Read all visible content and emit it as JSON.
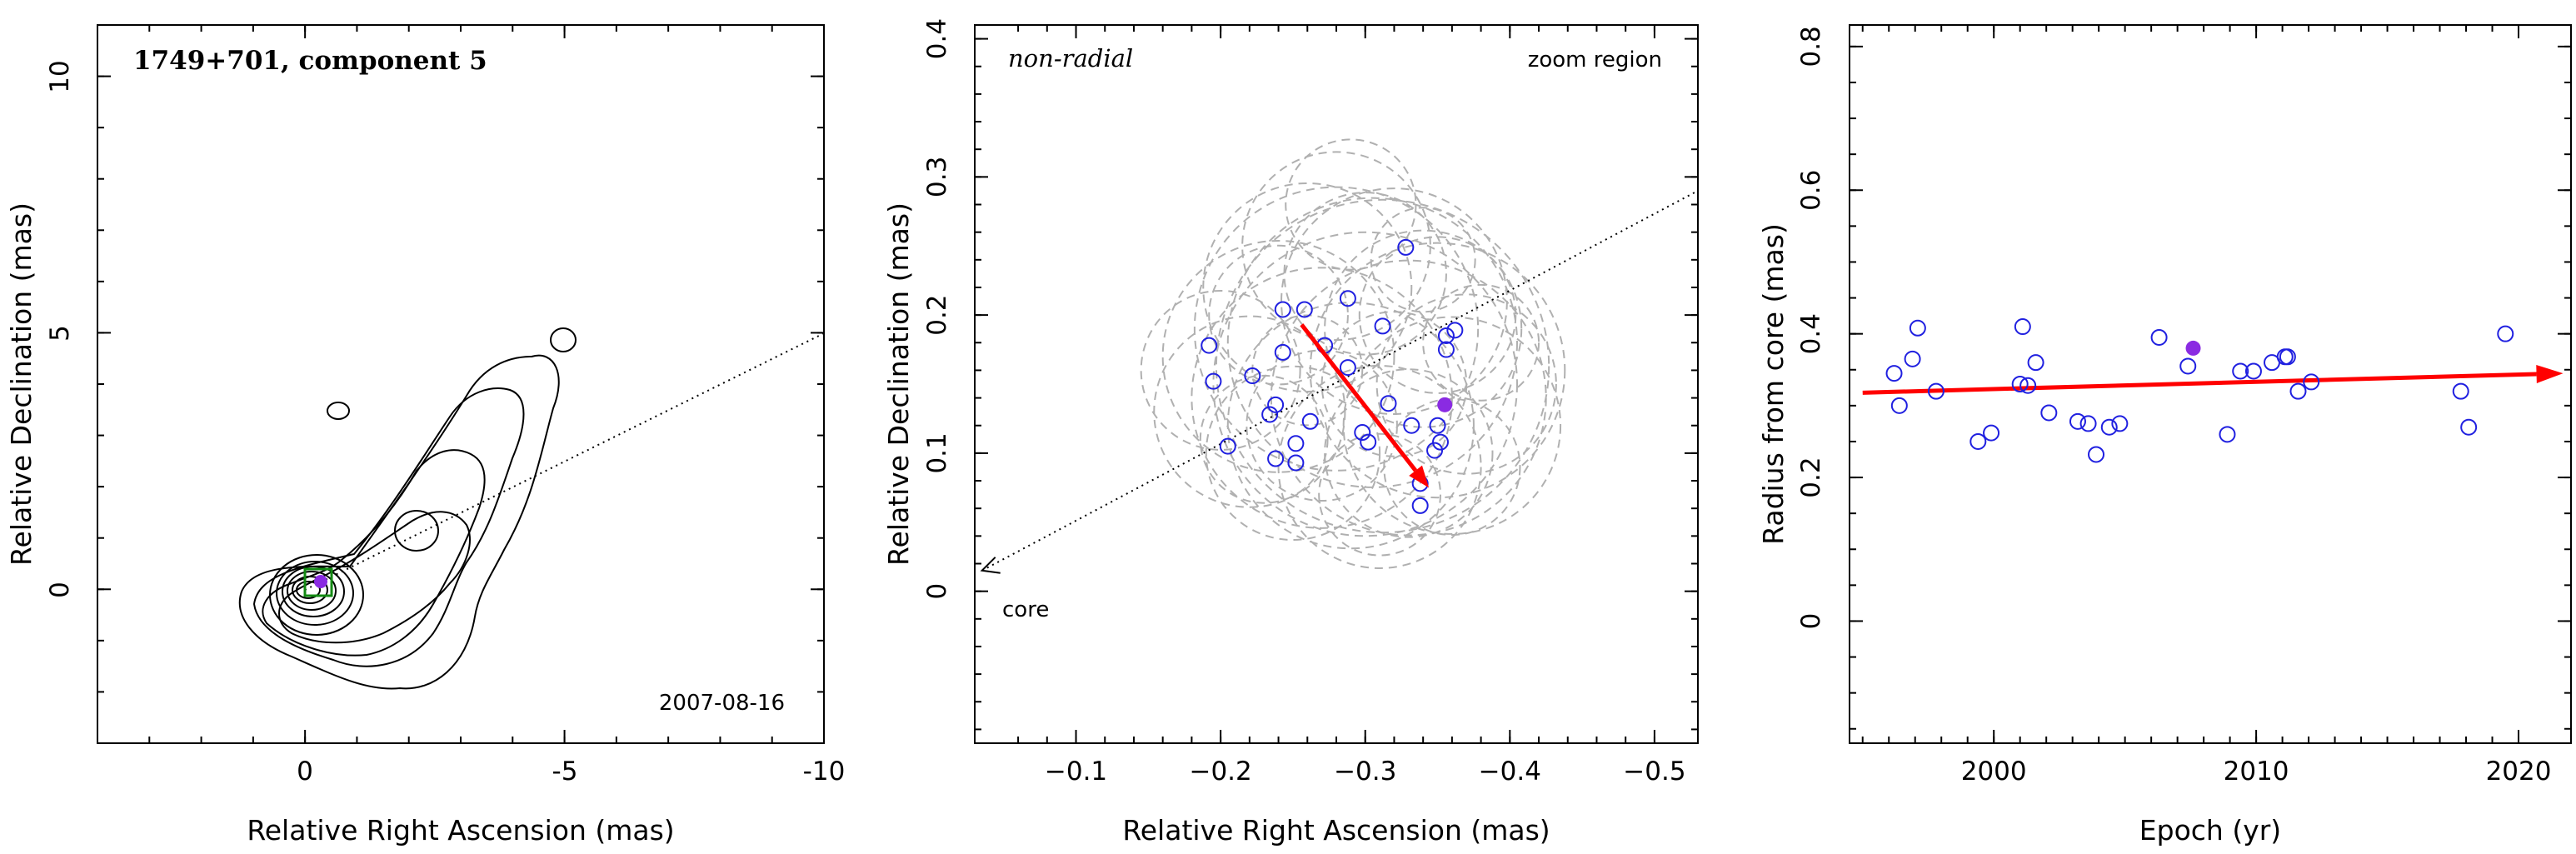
{
  "chart_data": [
    {
      "type": "contour",
      "title": "1749+701, component 5",
      "date": "2007-08-16",
      "xlabel": "Relative Right Ascension (mas)",
      "ylabel": "Relative Declination (mas)",
      "xlim": [
        4,
        -10
      ],
      "ylim": [
        -3,
        11
      ],
      "xticks": [
        0,
        -5,
        -10
      ],
      "yticks": [
        0,
        5,
        10
      ],
      "core_box_color": "#138a13",
      "marker_color": "#8a2be2",
      "component_position": [
        -0.3,
        0.15
      ],
      "direction_line": [
        [
          0,
          0
        ],
        [
          -10,
          5
        ]
      ]
    },
    {
      "type": "scatter",
      "note_left": "non-radial",
      "note_right": "zoom region",
      "core_label": "core",
      "xlabel": "Relative Right Ascension (mas)",
      "ylabel": "Relative Declination (mas)",
      "xlim": [
        -0.03,
        -0.53
      ],
      "ylim": [
        -0.11,
        0.41
      ],
      "xticks": [
        -0.1,
        -0.2,
        -0.3,
        -0.4,
        -0.5
      ],
      "yticks": [
        0,
        0.1,
        0.2,
        0.3,
        0.4
      ],
      "open_marker_color": "#2020e0",
      "filled_marker_color": "#8a2be2",
      "arrow_color": "#ff0000",
      "circle_color": "#b0b0b0",
      "positions": [
        [
          -0.192,
          0.178
        ],
        [
          -0.195,
          0.152
        ],
        [
          -0.205,
          0.105
        ],
        [
          -0.222,
          0.156
        ],
        [
          -0.234,
          0.128
        ],
        [
          -0.238,
          0.135
        ],
        [
          -0.243,
          0.204
        ],
        [
          -0.243,
          0.173
        ],
        [
          -0.258,
          0.204
        ],
        [
          -0.262,
          0.123
        ],
        [
          -0.238,
          0.096
        ],
        [
          -0.252,
          0.093
        ],
        [
          -0.252,
          0.107
        ],
        [
          -0.272,
          0.178
        ],
        [
          -0.288,
          0.212
        ],
        [
          -0.288,
          0.162
        ],
        [
          -0.298,
          0.115
        ],
        [
          -0.302,
          0.108
        ],
        [
          -0.312,
          0.192
        ],
        [
          -0.316,
          0.136
        ],
        [
          -0.328,
          0.249
        ],
        [
          -0.332,
          0.12
        ],
        [
          -0.338,
          0.078
        ],
        [
          -0.338,
          0.062
        ],
        [
          -0.348,
          0.102
        ],
        [
          -0.35,
          0.12
        ],
        [
          -0.352,
          0.108
        ],
        [
          -0.356,
          0.185
        ],
        [
          -0.356,
          0.175
        ],
        [
          -0.362,
          0.189
        ]
      ],
      "filled_position": [
        -0.355,
        0.135
      ],
      "arrow": {
        "from": [
          -0.256,
          0.193
        ],
        "to": [
          -0.344,
          0.075
        ]
      },
      "error_circles": [
        {
          "x": -0.312,
          "y": 0.163,
          "r": 0.115
        },
        {
          "x": -0.3,
          "y": 0.15,
          "r": 0.105
        },
        {
          "x": -0.305,
          "y": 0.18,
          "r": 0.1
        },
        {
          "x": -0.28,
          "y": 0.19,
          "r": 0.098
        },
        {
          "x": -0.33,
          "y": 0.14,
          "r": 0.095
        },
        {
          "x": -0.27,
          "y": 0.14,
          "r": 0.09
        },
        {
          "x": -0.35,
          "y": 0.16,
          "r": 0.088
        },
        {
          "x": -0.29,
          "y": 0.12,
          "r": 0.085
        },
        {
          "x": -0.24,
          "y": 0.17,
          "r": 0.08
        },
        {
          "x": -0.32,
          "y": 0.21,
          "r": 0.078
        },
        {
          "x": -0.36,
          "y": 0.12,
          "r": 0.075
        },
        {
          "x": -0.26,
          "y": 0.22,
          "r": 0.072
        },
        {
          "x": -0.31,
          "y": 0.09,
          "r": 0.07
        },
        {
          "x": -0.34,
          "y": 0.19,
          "r": 0.068
        },
        {
          "x": -0.22,
          "y": 0.13,
          "r": 0.066
        },
        {
          "x": -0.28,
          "y": 0.25,
          "r": 0.065
        },
        {
          "x": -0.37,
          "y": 0.15,
          "r": 0.062
        },
        {
          "x": -0.25,
          "y": 0.1,
          "r": 0.06
        },
        {
          "x": -0.33,
          "y": 0.1,
          "r": 0.058
        },
        {
          "x": -0.3,
          "y": 0.23,
          "r": 0.056
        },
        {
          "x": -0.2,
          "y": 0.16,
          "r": 0.055
        },
        {
          "x": -0.35,
          "y": 0.2,
          "r": 0.054
        },
        {
          "x": -0.27,
          "y": 0.12,
          "r": 0.052
        },
        {
          "x": -0.32,
          "y": 0.15,
          "r": 0.05
        },
        {
          "x": -0.24,
          "y": 0.2,
          "r": 0.048
        },
        {
          "x": -0.36,
          "y": 0.09,
          "r": 0.047
        },
        {
          "x": -0.29,
          "y": 0.28,
          "r": 0.045
        },
        {
          "x": -0.23,
          "y": 0.11,
          "r": 0.044
        },
        {
          "x": -0.31,
          "y": 0.07,
          "r": 0.042
        },
        {
          "x": -0.38,
          "y": 0.18,
          "r": 0.04
        },
        {
          "x": -0.26,
          "y": 0.16,
          "r": 0.038
        },
        {
          "x": -0.34,
          "y": 0.24,
          "r": 0.036
        }
      ]
    },
    {
      "type": "scatter",
      "xlabel": "Epoch (yr)",
      "ylabel": "Radius from core (mas)",
      "xlim": [
        1994.5,
        2022
      ],
      "ylim": [
        -0.17,
        0.83
      ],
      "xticks": [
        2000,
        2010,
        2020
      ],
      "yticks": [
        0,
        0.2,
        0.4,
        0.6,
        0.8
      ],
      "open_marker_color": "#2020e0",
      "filled_marker_color": "#8a2be2",
      "arrow_color": "#ff0000",
      "x": [
        1996.2,
        1996.4,
        1996.9,
        1997.1,
        1997.8,
        1999.4,
        1999.9,
        2001.0,
        2001.1,
        2001.3,
        2001.6,
        2002.1,
        2003.2,
        2003.6,
        2003.9,
        2004.4,
        2004.8,
        2006.3,
        2007.4,
        2008.9,
        2009.4,
        2009.9,
        2010.6,
        2011.1,
        2011.2,
        2011.6,
        2012.1,
        2017.8,
        2018.1,
        2019.5
      ],
      "y": [
        0.345,
        0.3,
        0.365,
        0.408,
        0.32,
        0.25,
        0.262,
        0.33,
        0.41,
        0.328,
        0.36,
        0.29,
        0.278,
        0.275,
        0.232,
        0.27,
        0.275,
        0.395,
        0.355,
        0.26,
        0.348,
        0.348,
        0.36,
        0.368,
        0.368,
        0.32,
        0.333,
        0.32,
        0.27,
        0.4
      ],
      "filled_point": {
        "x": 2007.6,
        "y": 0.38
      },
      "trend_arrow": {
        "from": [
          1995,
          0.318
        ],
        "to": [
          2021.7,
          0.345
        ]
      }
    }
  ]
}
